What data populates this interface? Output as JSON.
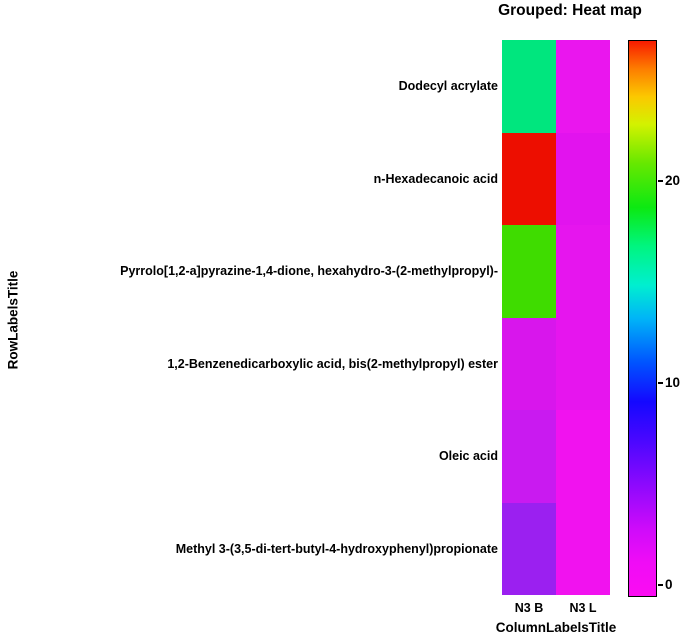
{
  "title": "Grouped: Heat map",
  "chart_data": {
    "type": "heatmap",
    "title": "Grouped: Heat map",
    "xlabel": "ColumnLabelsTitle",
    "ylabel": "RowLabelsTitle",
    "columns": [
      "N3 B",
      "N3 L"
    ],
    "rows": [
      "Dodecyl acrylate",
      "n-Hexadecanoic acid",
      "Pyrrolo[1,2-a]pyrazine-1,4-dione, hexahydro-3-(2-methylpropyl)-",
      "1,2-Benzenedicarboxylic acid, bis(2-methylpropyl) ester",
      "Oleic acid",
      "Methyl 3-(3,5-di-tert-butyl-4-hydroxyphenyl)propionate"
    ],
    "values": [
      [
        16,
        0.5
      ],
      [
        26,
        0.8
      ],
      [
        20,
        0.6
      ],
      [
        1.5,
        0.6
      ],
      [
        2.5,
        0.3
      ],
      [
        4,
        0.3
      ]
    ],
    "cell_colors": [
      [
        "#00e67e",
        "#ea16ee"
      ],
      [
        "#ed0e00",
        "#e213ee"
      ],
      [
        "#3fdc00",
        "#e615ee"
      ],
      [
        "#d816ec",
        "#e615ee"
      ],
      [
        "#c91af0",
        "#f112ef"
      ],
      [
        "#9b20f0",
        "#f112ef"
      ]
    ],
    "grid": false,
    "legend_position": "right-colorbar",
    "colorbar": {
      "vmin": -0.5,
      "vmax": 27,
      "ticks": [
        0,
        10,
        20
      ],
      "gradient_stops": [
        {
          "pos": 0.0,
          "color": "#fb0cf2"
        },
        {
          "pos": 0.06,
          "color": "#f00cf6"
        },
        {
          "pos": 0.12,
          "color": "#cf0bfa"
        },
        {
          "pos": 0.2,
          "color": "#8d09fd"
        },
        {
          "pos": 0.28,
          "color": "#4a07ff"
        },
        {
          "pos": 0.35,
          "color": "#1408ff"
        },
        {
          "pos": 0.42,
          "color": "#0053ff"
        },
        {
          "pos": 0.5,
          "color": "#00b4f7"
        },
        {
          "pos": 0.56,
          "color": "#00efd0"
        },
        {
          "pos": 0.63,
          "color": "#00f580"
        },
        {
          "pos": 0.7,
          "color": "#0ce912"
        },
        {
          "pos": 0.78,
          "color": "#67e800"
        },
        {
          "pos": 0.85,
          "color": "#d3f200"
        },
        {
          "pos": 0.9,
          "color": "#fcc800"
        },
        {
          "pos": 0.95,
          "color": "#fd7d00"
        },
        {
          "pos": 1.0,
          "color": "#f81b00"
        }
      ]
    }
  }
}
